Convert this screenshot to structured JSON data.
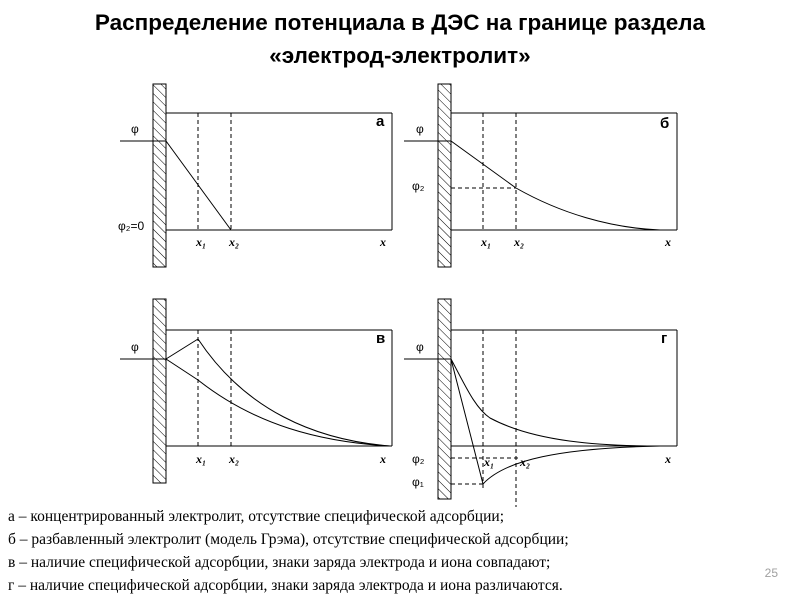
{
  "title": {
    "line1": "Распределение потенциала в ДЭС на границе раздела",
    "line2": "«электрод-электролит»"
  },
  "panels": {
    "a": {
      "letter": "а",
      "phi": "φ",
      "phi2": "φ₂=0",
      "x1": "x₁",
      "x2": "x₂",
      "x": "x"
    },
    "b": {
      "letter": "б",
      "phi": "φ",
      "phi2": "φ₂",
      "x1": "x₁",
      "x2": "x₂",
      "x": "x"
    },
    "v": {
      "letter": "в",
      "phi": "φ",
      "x1": "x₁",
      "x2": "x₂",
      "x": "x"
    },
    "g": {
      "letter": "г",
      "phi": "φ",
      "phi2": "φ₂",
      "phi1": "φ₁",
      "x1": "x₁",
      "x2": "x₂",
      "x": "x"
    }
  },
  "captions": [
    "а – концентрированный электролит, отсутствие специфической адсорбции;",
    "б – разбавленный электролит (модель Грэма), отсутствие специфической адсорбции;",
    "в – наличие специфической адсорбции, знаки заряда электрода и иона совпадают;",
    "г – наличие специфической адсорбции, знаки заряда электрода и иона различаются."
  ],
  "page_number": "25",
  "colors": {
    "line": "#000000",
    "page_number": "#a0a0a0"
  }
}
